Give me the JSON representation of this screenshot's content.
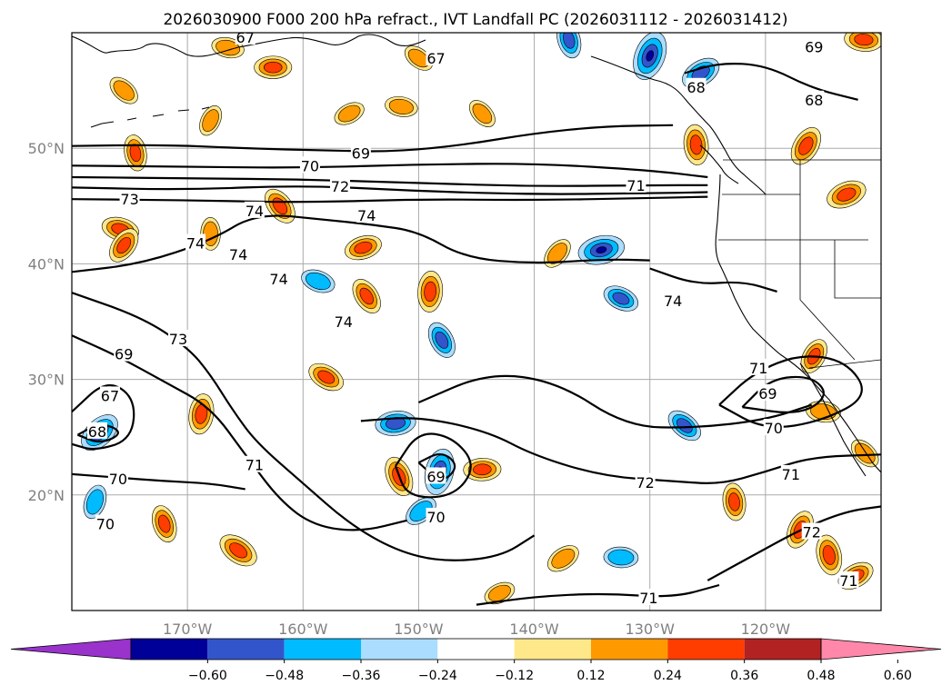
{
  "chart_data": {
    "type": "contour-map",
    "title": "2026030900 F000 200 hPa refract., IVT Landfall PC (2026031112 - 2026031412)",
    "lon_range": [
      -180,
      -110
    ],
    "lat_range": [
      10,
      60
    ],
    "x_ticks": [
      -170,
      -160,
      -150,
      -140,
      -130,
      -120
    ],
    "x_tick_labels": [
      "170°W",
      "160°W",
      "150°W",
      "140°W",
      "130°W",
      "120°W"
    ],
    "y_ticks": [
      20,
      30,
      40,
      50
    ],
    "y_tick_labels": [
      "20°N",
      "30°N",
      "40°N",
      "50°N"
    ],
    "gridlines": true,
    "colorbar": {
      "orientation": "horizontal",
      "extend": "both",
      "levels": [
        -0.6,
        -0.48,
        -0.36,
        -0.24,
        -0.12,
        0.12,
        0.24,
        0.36,
        0.48,
        0.6
      ],
      "tick_labels": [
        "−0.60",
        "−0.48",
        "−0.36",
        "−0.24",
        "−0.12",
        "0.12",
        "0.24",
        "0.36",
        "0.48",
        "0.60"
      ],
      "colors": [
        "#9933cc",
        "#000099",
        "#3355cc",
        "#00bbff",
        "#aaddff",
        "#ffffff",
        "#ffe88a",
        "#ff9900",
        "#ff3d00",
        "#b22222",
        "#ff88aa"
      ]
    },
    "contour_labels": [
      {
        "text": "67",
        "lon": -165.0,
        "lat": 59.6
      },
      {
        "text": "67",
        "lon": -148.5,
        "lat": 57.8
      },
      {
        "text": "69",
        "lon": -115.8,
        "lat": 58.8
      },
      {
        "text": "68",
        "lon": -126.0,
        "lat": 55.3
      },
      {
        "text": "68",
        "lon": -115.8,
        "lat": 54.2
      },
      {
        "text": "69",
        "lon": -155.0,
        "lat": 49.6
      },
      {
        "text": "70",
        "lon": -159.4,
        "lat": 48.5
      },
      {
        "text": "72",
        "lon": -156.8,
        "lat": 46.7
      },
      {
        "text": "71",
        "lon": -131.2,
        "lat": 46.8
      },
      {
        "text": "73",
        "lon": -175.0,
        "lat": 45.6
      },
      {
        "text": "74",
        "lon": -164.2,
        "lat": 44.6
      },
      {
        "text": "74",
        "lon": -154.5,
        "lat": 44.2
      },
      {
        "text": "74",
        "lon": -169.3,
        "lat": 41.8
      },
      {
        "text": "74",
        "lon": -165.6,
        "lat": 40.8
      },
      {
        "text": "74",
        "lon": -162.1,
        "lat": 38.7
      },
      {
        "text": "74",
        "lon": -156.5,
        "lat": 35.0
      },
      {
        "text": "74",
        "lon": -128.0,
        "lat": 36.8
      },
      {
        "text": "73",
        "lon": -170.8,
        "lat": 33.5
      },
      {
        "text": "69",
        "lon": -175.5,
        "lat": 32.2
      },
      {
        "text": "71",
        "lon": -120.6,
        "lat": 31.0
      },
      {
        "text": "69",
        "lon": -119.8,
        "lat": 28.8
      },
      {
        "text": "67",
        "lon": -176.7,
        "lat": 28.6
      },
      {
        "text": "68",
        "lon": -177.8,
        "lat": 25.5
      },
      {
        "text": "70",
        "lon": -119.3,
        "lat": 25.8
      },
      {
        "text": "71",
        "lon": -164.2,
        "lat": 22.6
      },
      {
        "text": "70",
        "lon": -176.0,
        "lat": 21.4
      },
      {
        "text": "69",
        "lon": -148.5,
        "lat": 21.6
      },
      {
        "text": "72",
        "lon": -130.4,
        "lat": 21.1
      },
      {
        "text": "71",
        "lon": -117.8,
        "lat": 21.8
      },
      {
        "text": "70",
        "lon": -148.5,
        "lat": 18.1
      },
      {
        "text": "72",
        "lon": -116.0,
        "lat": 16.8
      },
      {
        "text": "71",
        "lon": -112.8,
        "lat": 12.6
      },
      {
        "text": "71",
        "lon": -130.1,
        "lat": 11.1
      },
      {
        "text": "70",
        "lon": -177.1,
        "lat": 17.5
      }
    ],
    "contours": [
      {
        "level": 70,
        "points": [
          [
            -180,
            48.5
          ],
          [
            -170,
            48.4
          ],
          [
            -160,
            48.3
          ],
          [
            -150,
            48.6
          ],
          [
            -140,
            48.7
          ],
          [
            -130,
            48.1
          ],
          [
            -125,
            47.5
          ]
        ]
      },
      {
        "level": 71,
        "points": [
          [
            -180,
            47.5
          ],
          [
            -170,
            47.4
          ],
          [
            -160,
            47.3
          ],
          [
            -150,
            47.0
          ],
          [
            -140,
            46.7
          ],
          [
            -130,
            46.8
          ],
          [
            -125,
            46.8
          ]
        ]
      },
      {
        "level": 72,
        "points": [
          [
            -180,
            46.6
          ],
          [
            -170,
            46.4
          ],
          [
            -160,
            46.8
          ],
          [
            -150,
            46.3
          ],
          [
            -140,
            46.0
          ],
          [
            -130,
            46.1
          ],
          [
            -125,
            46.2
          ]
        ]
      },
      {
        "level": 73,
        "points": [
          [
            -180,
            45.6
          ],
          [
            -170,
            45.5
          ],
          [
            -160,
            45.3
          ],
          [
            -150,
            45.6
          ],
          [
            -140,
            45.5
          ],
          [
            -130,
            45.7
          ],
          [
            -125,
            45.8
          ]
        ]
      },
      {
        "level": 69,
        "points": [
          [
            -180,
            50.2
          ],
          [
            -172,
            50.3
          ],
          [
            -165,
            50.0
          ],
          [
            -158,
            49.8
          ],
          [
            -152,
            49.7
          ],
          [
            -146,
            50.3
          ],
          [
            -140,
            51.3
          ],
          [
            -134,
            51.9
          ],
          [
            -128,
            52.0
          ]
        ]
      },
      {
        "level": 74,
        "points": [
          [
            -180,
            39.3
          ],
          [
            -174,
            40.0
          ],
          [
            -168,
            42.0
          ],
          [
            -164,
            44.4
          ],
          [
            -158,
            43.8
          ],
          [
            -154,
            43.4
          ],
          [
            -150,
            42.8
          ],
          [
            -146,
            40.5
          ],
          [
            -140,
            40.0
          ],
          [
            -134,
            40.4
          ],
          [
            -130,
            40.3
          ]
        ]
      },
      {
        "level": 73,
        "points": [
          [
            -180,
            37.5
          ],
          [
            -174,
            35.4
          ],
          [
            -170,
            32.8
          ],
          [
            -168,
            30.4
          ],
          [
            -166,
            27.2
          ],
          [
            -164,
            24.5
          ],
          [
            -160,
            21.0
          ],
          [
            -156,
            17.5
          ],
          [
            -152,
            15.2
          ],
          [
            -148,
            14.2
          ],
          [
            -143,
            14.6
          ],
          [
            -140,
            16.5
          ]
        ]
      },
      {
        "level": 71,
        "points": [
          [
            -180,
            33.8
          ],
          [
            -176,
            32.0
          ],
          [
            -172,
            29.8
          ],
          [
            -168,
            27.6
          ],
          [
            -165,
            23.5
          ],
          [
            -162,
            19.5
          ],
          [
            -159,
            17.3
          ],
          [
            -155,
            16.8
          ],
          [
            -151,
            17.8
          ]
        ]
      },
      {
        "level": 70,
        "points": [
          [
            -180,
            21.8
          ],
          [
            -176,
            21.5
          ],
          [
            -172,
            21.2
          ],
          [
            -168,
            21.0
          ],
          [
            -165,
            20.5
          ]
        ]
      },
      {
        "level": 70,
        "points": [
          [
            -152,
            22.5
          ],
          [
            -150,
            25.5
          ],
          [
            -147,
            25.0
          ],
          [
            -145,
            22.5
          ],
          [
            -147,
            19.8
          ],
          [
            -151,
            19.8
          ],
          [
            -152,
            22.5
          ]
        ]
      },
      {
        "level": 69,
        "points": [
          [
            -150,
            22.8
          ],
          [
            -148,
            23.8
          ],
          [
            -146.5,
            22.5
          ],
          [
            -148,
            21.0
          ],
          [
            -150,
            22.8
          ]
        ]
      },
      {
        "level": 72,
        "points": [
          [
            -150,
            28.0
          ],
          [
            -144,
            30.6
          ],
          [
            -138,
            29.8
          ],
          [
            -132,
            25.9
          ],
          [
            -126,
            25.8
          ],
          [
            -120,
            26.5
          ],
          [
            -116,
            27.8
          ]
        ]
      },
      {
        "level": 71,
        "points": [
          [
            -155,
            26.4
          ],
          [
            -150,
            26.8
          ],
          [
            -144,
            25.5
          ],
          [
            -140,
            23.4
          ],
          [
            -134,
            21.6
          ],
          [
            -128,
            21.2
          ],
          [
            -124,
            20.9
          ],
          [
            -120,
            22.0
          ],
          [
            -116,
            23.3
          ],
          [
            -110,
            23.5
          ]
        ]
      },
      {
        "level": 72,
        "points": [
          [
            -125,
            12.6
          ],
          [
            -121,
            14.8
          ],
          [
            -117,
            17.0
          ],
          [
            -113,
            18.6
          ],
          [
            -110,
            19.0
          ]
        ]
      },
      {
        "level": 71,
        "points": [
          [
            -145,
            10.5
          ],
          [
            -140,
            11.2
          ],
          [
            -134,
            11.5
          ],
          [
            -128,
            11.1
          ],
          [
            -124,
            12.2
          ]
        ]
      },
      {
        "level": 70,
        "points": [
          [
            -124,
            27.8
          ],
          [
            -121,
            30.6
          ],
          [
            -117,
            32.2
          ],
          [
            -113,
            31.6
          ],
          [
            -111,
            28.6
          ],
          [
            -115,
            26.4
          ],
          [
            -120,
            25.6
          ],
          [
            -124,
            27.8
          ]
        ]
      },
      {
        "level": 69,
        "points": [
          [
            -122,
            27.6
          ],
          [
            -119.5,
            30.1
          ],
          [
            -116,
            30.3
          ],
          [
            -114.5,
            28.6
          ],
          [
            -117,
            26.9
          ],
          [
            -122,
            27.6
          ]
        ]
      },
      {
        "level": 68,
        "points": [
          [
            -179.5,
            25.2
          ],
          [
            -177.5,
            26.3
          ],
          [
            -175.5,
            25.4
          ],
          [
            -177.5,
            24.4
          ],
          [
            -179.5,
            25.2
          ]
        ]
      },
      {
        "level": 67,
        "points": [
          [
            -180,
            27.2
          ],
          [
            -177,
            30.0
          ],
          [
            -174.5,
            28.4
          ],
          [
            -174.8,
            24.8
          ],
          [
            -178,
            23.8
          ],
          [
            -180,
            24.4
          ]
        ]
      },
      {
        "level": 74,
        "points": [
          [
            -130,
            39.6
          ],
          [
            -126,
            38.2
          ],
          [
            -122,
            38.5
          ],
          [
            -119,
            37.6
          ]
        ]
      },
      {
        "level": 68,
        "points": [
          [
            -127,
            56.5
          ],
          [
            -124,
            57.4
          ],
          [
            -120,
            57.2
          ],
          [
            -116,
            55.2
          ],
          [
            -112,
            54.2
          ]
        ]
      }
    ],
    "shaded_anomalies": [
      {
        "lon": -162.6,
        "lat": 57.0,
        "value": 0.4
      },
      {
        "lon": -150.0,
        "lat": 57.8,
        "value": 0.3
      },
      {
        "lon": -137.0,
        "lat": 59.4,
        "value": -0.4
      },
      {
        "lon": -130.0,
        "lat": 58.0,
        "value": -0.6
      },
      {
        "lon": -125.6,
        "lat": 56.5,
        "value": -0.45
      },
      {
        "lon": -111.5,
        "lat": 59.4,
        "value": 0.42
      },
      {
        "lon": -175.5,
        "lat": 55.0,
        "value": 0.32
      },
      {
        "lon": -174.5,
        "lat": 49.6,
        "value": 0.38
      },
      {
        "lon": -168.0,
        "lat": 52.4,
        "value": 0.3
      },
      {
        "lon": -156.0,
        "lat": 53.0,
        "value": 0.3
      },
      {
        "lon": -151.5,
        "lat": 53.6,
        "value": 0.32
      },
      {
        "lon": -144.5,
        "lat": 53.0,
        "value": 0.3
      },
      {
        "lon": -126.0,
        "lat": 50.3,
        "value": 0.45
      },
      {
        "lon": -116.5,
        "lat": 50.2,
        "value": 0.45
      },
      {
        "lon": -113.0,
        "lat": 46.0,
        "value": 0.45
      },
      {
        "lon": -175.8,
        "lat": 43.0,
        "value": 0.4
      },
      {
        "lon": -162.0,
        "lat": 45.0,
        "value": 0.42
      },
      {
        "lon": -168.0,
        "lat": 42.6,
        "value": 0.32
      },
      {
        "lon": -175.5,
        "lat": 41.6,
        "value": 0.4
      },
      {
        "lon": -154.8,
        "lat": 41.4,
        "value": 0.4
      },
      {
        "lon": -158.7,
        "lat": 38.5,
        "value": -0.35
      },
      {
        "lon": -154.5,
        "lat": 37.2,
        "value": 0.4
      },
      {
        "lon": -149.0,
        "lat": 37.6,
        "value": 0.46
      },
      {
        "lon": -138.0,
        "lat": 40.9,
        "value": 0.32
      },
      {
        "lon": -134.2,
        "lat": 41.2,
        "value": -0.55
      },
      {
        "lon": -132.5,
        "lat": 37.0,
        "value": -0.38
      },
      {
        "lon": -148.0,
        "lat": 33.4,
        "value": -0.4
      },
      {
        "lon": -168.8,
        "lat": 27.0,
        "value": 0.45
      },
      {
        "lon": -177.6,
        "lat": 25.4,
        "value": -0.5
      },
      {
        "lon": -152.0,
        "lat": 26.2,
        "value": -0.45
      },
      {
        "lon": -158.0,
        "lat": 30.2,
        "value": 0.4
      },
      {
        "lon": -151.7,
        "lat": 21.6,
        "value": 0.45
      },
      {
        "lon": -148.2,
        "lat": 22.0,
        "value": -0.55
      },
      {
        "lon": -149.8,
        "lat": 18.6,
        "value": -0.35
      },
      {
        "lon": -144.5,
        "lat": 22.2,
        "value": 0.4
      },
      {
        "lon": -165.6,
        "lat": 15.2,
        "value": 0.46
      },
      {
        "lon": -172.0,
        "lat": 17.5,
        "value": 0.4
      },
      {
        "lon": -178.0,
        "lat": 19.4,
        "value": -0.35
      },
      {
        "lon": -137.5,
        "lat": 14.5,
        "value": 0.35
      },
      {
        "lon": -132.5,
        "lat": 14.6,
        "value": -0.35
      },
      {
        "lon": -127.0,
        "lat": 26.0,
        "value": -0.4
      },
      {
        "lon": -114.5,
        "lat": 14.8,
        "value": 0.45
      },
      {
        "lon": -117.0,
        "lat": 17.0,
        "value": 0.42
      },
      {
        "lon": -112.2,
        "lat": 13.0,
        "value": 0.4
      },
      {
        "lon": -115.0,
        "lat": 27.2,
        "value": 0.35
      },
      {
        "lon": -111.4,
        "lat": 23.6,
        "value": 0.32
      },
      {
        "lon": -122.7,
        "lat": 19.4,
        "value": 0.4
      },
      {
        "lon": -115.8,
        "lat": 32.0,
        "value": 0.38
      },
      {
        "lon": -143.0,
        "lat": 11.5,
        "value": 0.3
      },
      {
        "lon": -166.5,
        "lat": 58.7,
        "value": 0.32
      }
    ]
  }
}
